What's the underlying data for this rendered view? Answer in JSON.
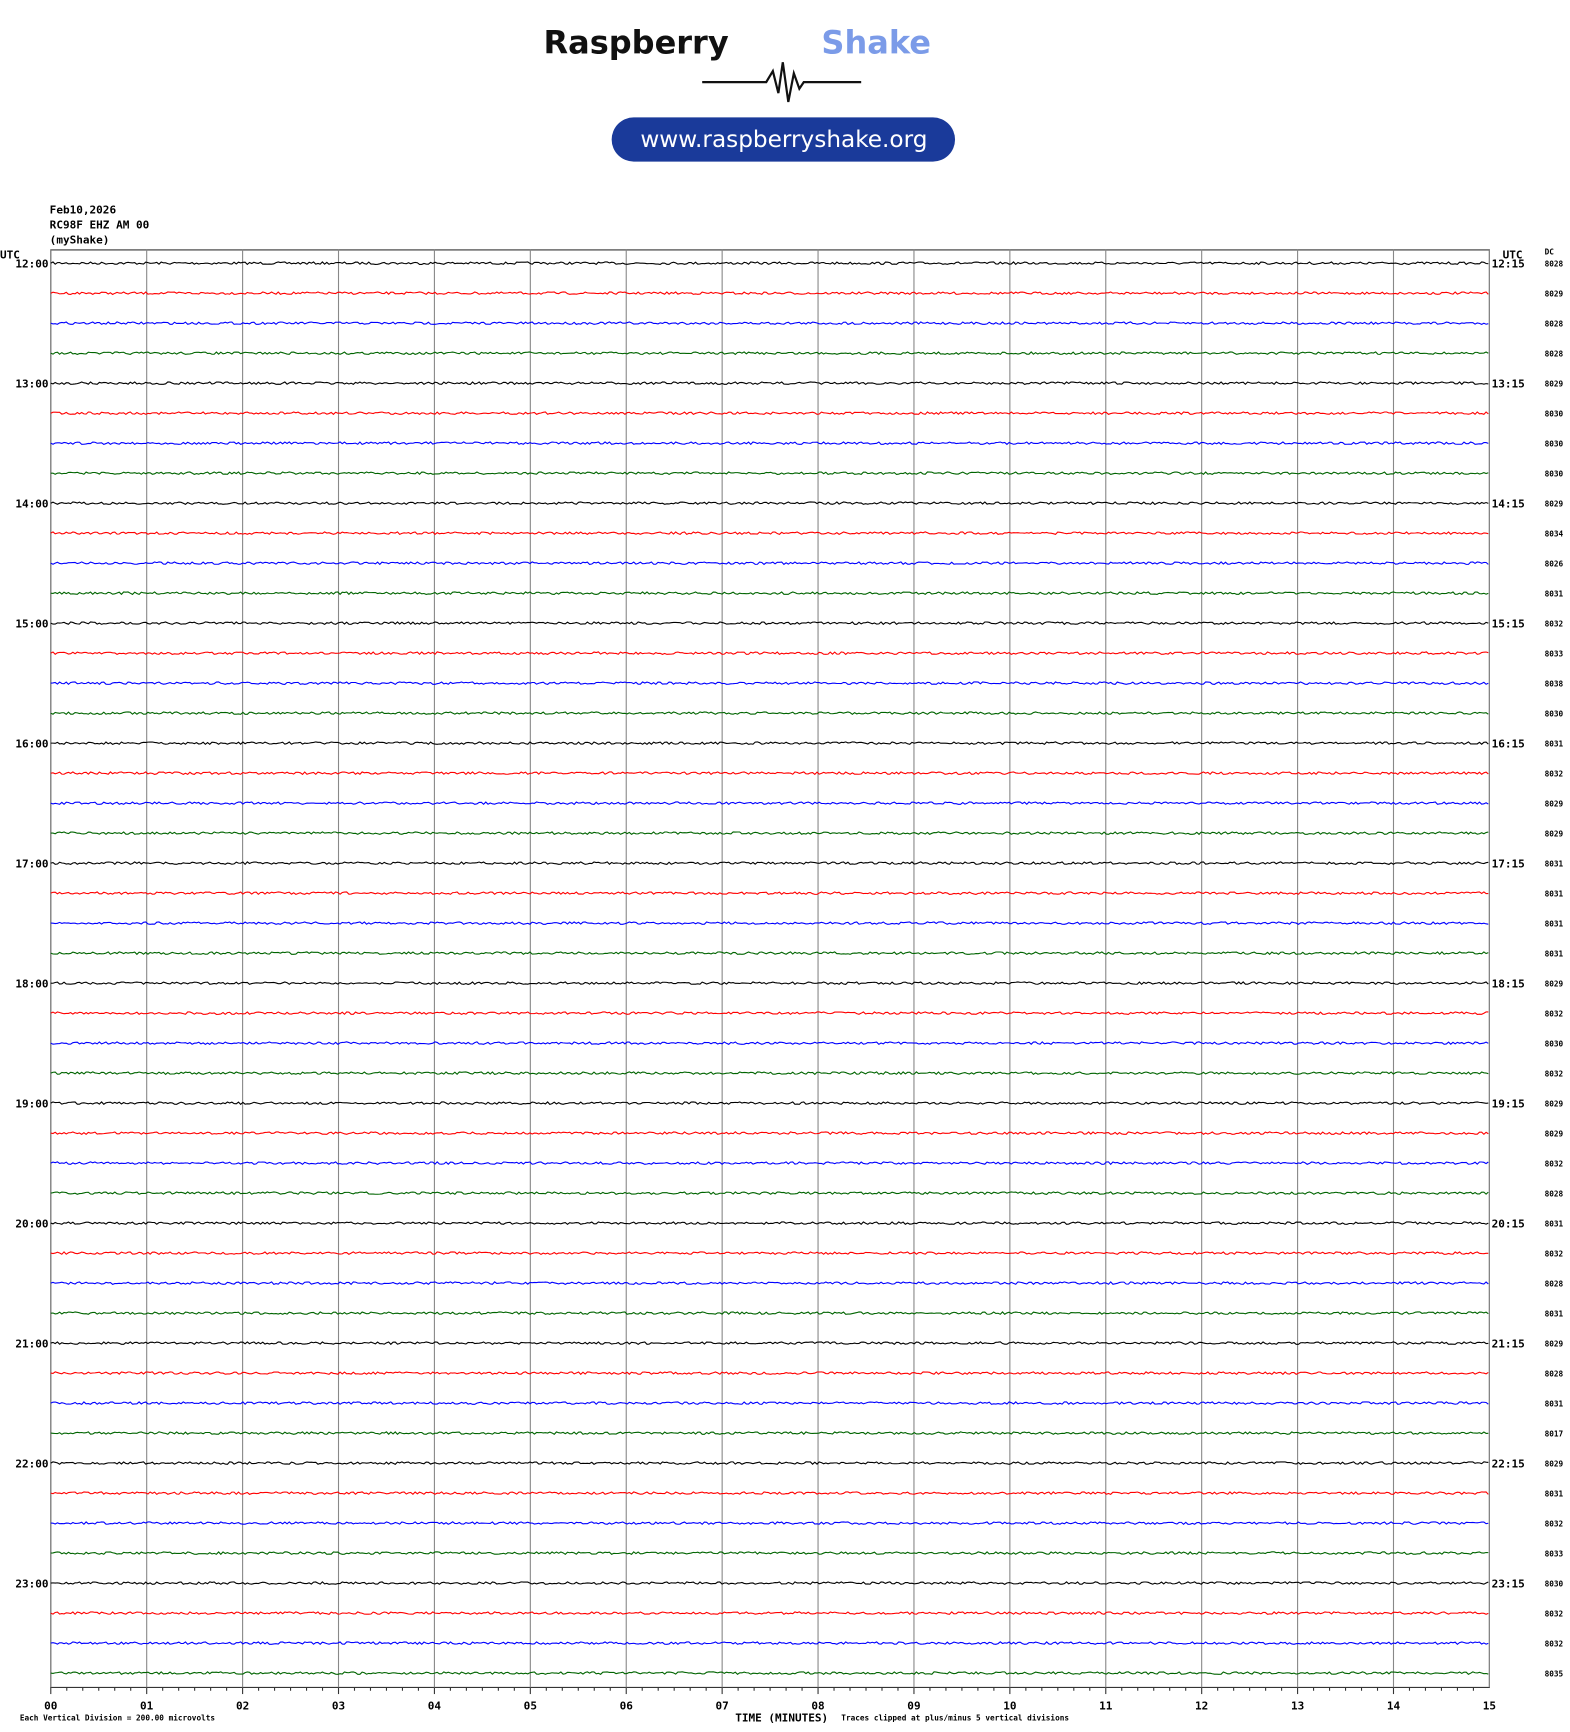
{
  "header": {
    "brand": "Raspberry",
    "brand_accent": "Shake",
    "url": "www.raspberryshake.org"
  },
  "chart_data": {
    "type": "helicorder",
    "info": [
      "Feb10,2026",
      "RC98F EHZ AM 00",
      "(myShake)"
    ],
    "left_axis_label": "UTC",
    "right_axis_label": "UTC",
    "dc_label": "DC",
    "left_labels": [
      "12:00",
      "13:00",
      "14:00",
      "15:00",
      "16:00",
      "17:00",
      "18:00",
      "19:00",
      "20:00",
      "21:00",
      "22:00",
      "23:00"
    ],
    "right_labels": [
      "12:15",
      "13:15",
      "14:15",
      "15:15",
      "16:15",
      "17:15",
      "18:15",
      "19:15",
      "20:15",
      "21:15",
      "22:15",
      "23:15"
    ],
    "dc_values": [
      8028,
      8029,
      8028,
      8028,
      8029,
      8030,
      8030,
      8030,
      8029,
      8034,
      8026,
      8031,
      8032,
      8033,
      8038,
      8030,
      8031,
      8032,
      8029,
      8029,
      8031,
      8031,
      8031,
      8031,
      8029,
      8032,
      8030,
      8032,
      8029,
      8029,
      8032,
      8028,
      8031,
      8032,
      8028,
      8031,
      8029,
      8028,
      8031,
      8017,
      8029,
      8031,
      8032,
      8033,
      8030,
      8032,
      8032,
      8035
    ],
    "trace_colors": [
      "#000000",
      "#ff0000",
      "#0000ff",
      "#006400"
    ],
    "xlim": [
      0,
      15
    ],
    "xticks": [
      {
        "value": 0,
        "label": "00"
      },
      {
        "value": 1,
        "label": "01"
      },
      {
        "value": 2,
        "label": "02"
      },
      {
        "value": 3,
        "label": "03"
      },
      {
        "value": 4,
        "label": "04"
      },
      {
        "value": 5,
        "label": "05"
      },
      {
        "value": 6,
        "label": "06"
      },
      {
        "value": 7,
        "label": "07"
      },
      {
        "value": 8,
        "label": "08"
      },
      {
        "value": 9,
        "label": "09"
      },
      {
        "value": 10,
        "label": "10"
      },
      {
        "value": 11,
        "label": "11"
      },
      {
        "value": 12,
        "label": "12"
      },
      {
        "value": 13,
        "label": "13"
      },
      {
        "value": 14,
        "label": "14"
      },
      {
        "value": 15,
        "label": "15"
      }
    ],
    "xlabel": "TIME (MINUTES)",
    "scale_note": "Each Vertical Division =  200.00 microvolts",
    "clip_note": "Traces clipped at plus/minus 5 vertical divisions"
  }
}
